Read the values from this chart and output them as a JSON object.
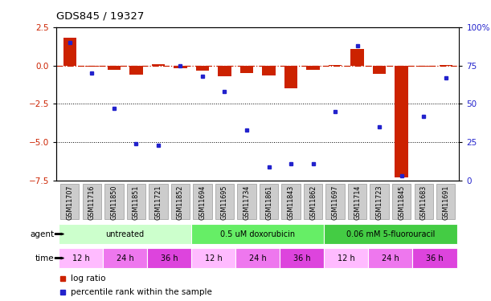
{
  "title": "GDS845 / 19327",
  "samples": [
    "GSM11707",
    "GSM11716",
    "GSM11850",
    "GSM11851",
    "GSM11721",
    "GSM11852",
    "GSM11694",
    "GSM11695",
    "GSM11734",
    "GSM11861",
    "GSM11843",
    "GSM11862",
    "GSM11697",
    "GSM11714",
    "GSM11723",
    "GSM11845",
    "GSM11683",
    "GSM11691"
  ],
  "log_ratio": [
    1.8,
    -0.1,
    -0.3,
    -0.6,
    0.1,
    -0.2,
    -0.35,
    -0.7,
    -0.5,
    -0.65,
    -1.5,
    -0.3,
    0.05,
    1.1,
    -0.55,
    -7.3,
    -0.05,
    0.05
  ],
  "percentile_rank": [
    90,
    70,
    47,
    24,
    23,
    75,
    68,
    58,
    33,
    9,
    11,
    11,
    45,
    88,
    35,
    3,
    42,
    67
  ],
  "ylim_left": [
    -7.5,
    2.5
  ],
  "ylim_right": [
    0,
    100
  ],
  "yticks_left": [
    2.5,
    0,
    -2.5,
    -5.0,
    -7.5
  ],
  "yticks_right": [
    100,
    75,
    50,
    25,
    0
  ],
  "hlines": [
    -2.5,
    -5.0
  ],
  "bar_color": "#cc2200",
  "dot_color": "#2222cc",
  "zero_line_color": "#cc2200",
  "agent_groups": [
    {
      "label": "untreated",
      "start": 0,
      "end": 6,
      "color": "#ccffcc"
    },
    {
      "label": "0.5 uM doxorubicin",
      "start": 6,
      "end": 12,
      "color": "#66ee66"
    },
    {
      "label": "0.06 mM 5-fluorouracil",
      "start": 12,
      "end": 18,
      "color": "#44cc44"
    }
  ],
  "time_groups": [
    {
      "label": "12 h",
      "start": 0,
      "end": 2,
      "color": "#ffbbff"
    },
    {
      "label": "24 h",
      "start": 2,
      "end": 4,
      "color": "#ee77ee"
    },
    {
      "label": "36 h",
      "start": 4,
      "end": 6,
      "color": "#dd44dd"
    },
    {
      "label": "12 h",
      "start": 6,
      "end": 8,
      "color": "#ffbbff"
    },
    {
      "label": "24 h",
      "start": 8,
      "end": 10,
      "color": "#ee77ee"
    },
    {
      "label": "36 h",
      "start": 10,
      "end": 12,
      "color": "#dd44dd"
    },
    {
      "label": "12 h",
      "start": 12,
      "end": 14,
      "color": "#ffbbff"
    },
    {
      "label": "24 h",
      "start": 14,
      "end": 16,
      "color": "#ee77ee"
    },
    {
      "label": "36 h",
      "start": 16,
      "end": 18,
      "color": "#dd44dd"
    }
  ],
  "legend_log_color": "#cc2200",
  "legend_dot_color": "#2222cc",
  "bg_color": "#ffffff",
  "tick_label_color": "#cc2200",
  "right_tick_color": "#2222cc",
  "sample_box_color": "#cccccc",
  "sample_box_edge": "#999999"
}
